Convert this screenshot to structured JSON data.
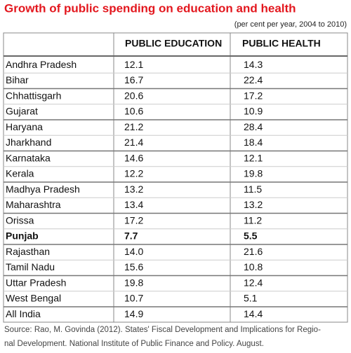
{
  "header": {
    "title": "Growth of public spending on education and health",
    "subtitle": "(per cent per year, 2004 to 2010)"
  },
  "table": {
    "columns": [
      "PUBLIC EDUCATION",
      "PUBLIC HEALTH"
    ],
    "rows": [
      [
        "Andhra Pradesh",
        "12.1",
        "14.3"
      ],
      [
        "Bihar",
        "16.7",
        "22.4"
      ],
      [
        "Chhattisgarh",
        "20.6",
        "17.2"
      ],
      [
        "Gujarat",
        "10.6",
        "10.9"
      ],
      [
        "Haryana",
        "21.2",
        "28.4"
      ],
      [
        "Jharkhand",
        "21.4",
        "18.4"
      ],
      [
        "Karnataka",
        "14.6",
        "12.1"
      ],
      [
        "Kerala",
        "12.2",
        "19.8"
      ],
      [
        "Madhya Pradesh",
        "13.2",
        "11.5"
      ],
      [
        "Maharashtra",
        "13.4",
        "13.2"
      ],
      [
        "Orissa",
        "17.2",
        "11.2"
      ],
      [
        "Punjab",
        "7.7",
        "5.5"
      ],
      [
        "Rajasthan",
        "14.0",
        "21.6"
      ],
      [
        "Tamil Nadu",
        "15.6",
        "10.8"
      ],
      [
        "Uttar Pradesh",
        "19.8",
        "12.4"
      ],
      [
        "West Bengal",
        "10.7",
        "5.1"
      ],
      [
        "All India",
        "14.9",
        "14.4"
      ]
    ]
  },
  "footer": {
    "source": [
      "Source: Rao, M. Govinda (2012). States' Fiscal Development and Implications for Regio-",
      "nal Development. National Institute of Public Finance and Policy. August."
    ]
  }
}
